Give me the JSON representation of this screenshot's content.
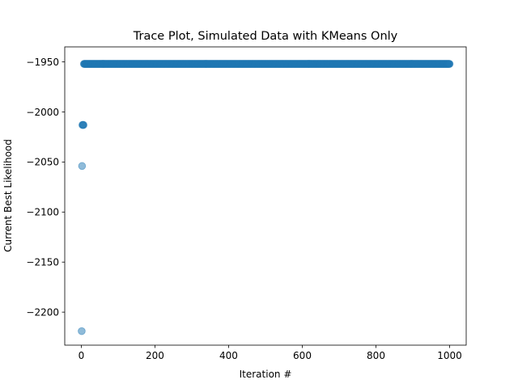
{
  "chart_data": {
    "type": "scatter",
    "title": "Trace Plot, Simulated Data with KMeans Only",
    "xlabel": "Iteration #",
    "ylabel": "Current Best Likelihood",
    "xlim": [
      -45,
      1045
    ],
    "ylim": [
      -2233,
      -1935
    ],
    "xticks": [
      0,
      200,
      400,
      600,
      800,
      1000
    ],
    "yticks": [
      -2200,
      -2150,
      -2100,
      -2050,
      -2000,
      -1950
    ],
    "grid": false,
    "legend": "none",
    "point_color": "#1f77b4",
    "point_alpha": 0.5,
    "early_points": [
      {
        "x": 1,
        "y": -2219
      },
      {
        "x": 2,
        "y": -2054
      },
      {
        "x": 3,
        "y": -2013
      },
      {
        "x": 4,
        "y": -2013
      },
      {
        "x": 5,
        "y": -2013
      },
      {
        "x": 6,
        "y": -2013
      }
    ],
    "plateau": {
      "x_start": 7,
      "x_end": 1000,
      "y": -1952
    }
  }
}
